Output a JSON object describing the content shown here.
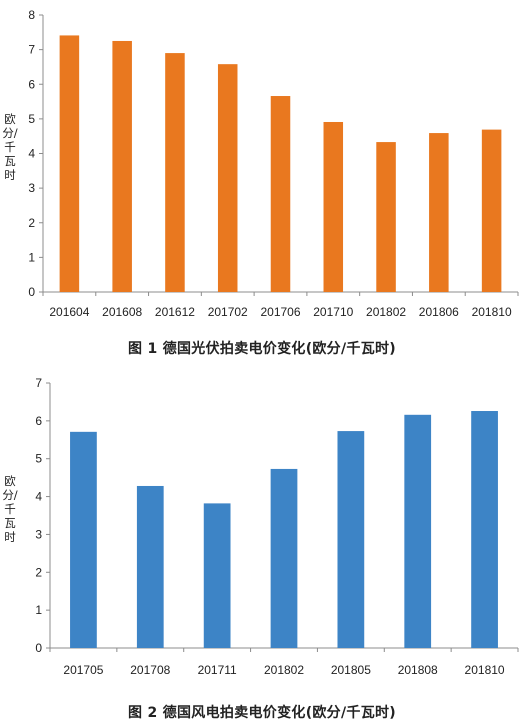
{
  "chart_data": [
    {
      "type": "bar",
      "caption": "图 1   德国光伏拍卖电价变化(欧分/千瓦时)",
      "ylabel": "欧分/千瓦时",
      "categories": [
        "201604",
        "201608",
        "201612",
        "201702",
        "201706",
        "201710",
        "201802",
        "201806",
        "201810"
      ],
      "values": [
        7.41,
        7.25,
        6.9,
        6.58,
        5.66,
        4.91,
        4.33,
        4.59,
        4.69
      ],
      "ylim": [
        0,
        8
      ],
      "yticks": [
        0,
        1,
        2,
        3,
        4,
        5,
        6,
        7,
        8
      ],
      "color": "#E9781F",
      "grid": false
    },
    {
      "type": "bar",
      "caption": "图 2   德国风电拍卖电价变化(欧分/千瓦时)",
      "ylabel": "欧分/千瓦时",
      "categories": [
        "201705",
        "201708",
        "201711",
        "201802",
        "201805",
        "201808",
        "201810"
      ],
      "values": [
        5.71,
        4.28,
        3.82,
        4.73,
        5.73,
        6.16,
        6.26
      ],
      "ylim": [
        0,
        7
      ],
      "yticks": [
        0,
        1,
        2,
        3,
        4,
        5,
        6,
        7
      ],
      "color": "#3D84C6",
      "grid": false
    }
  ]
}
